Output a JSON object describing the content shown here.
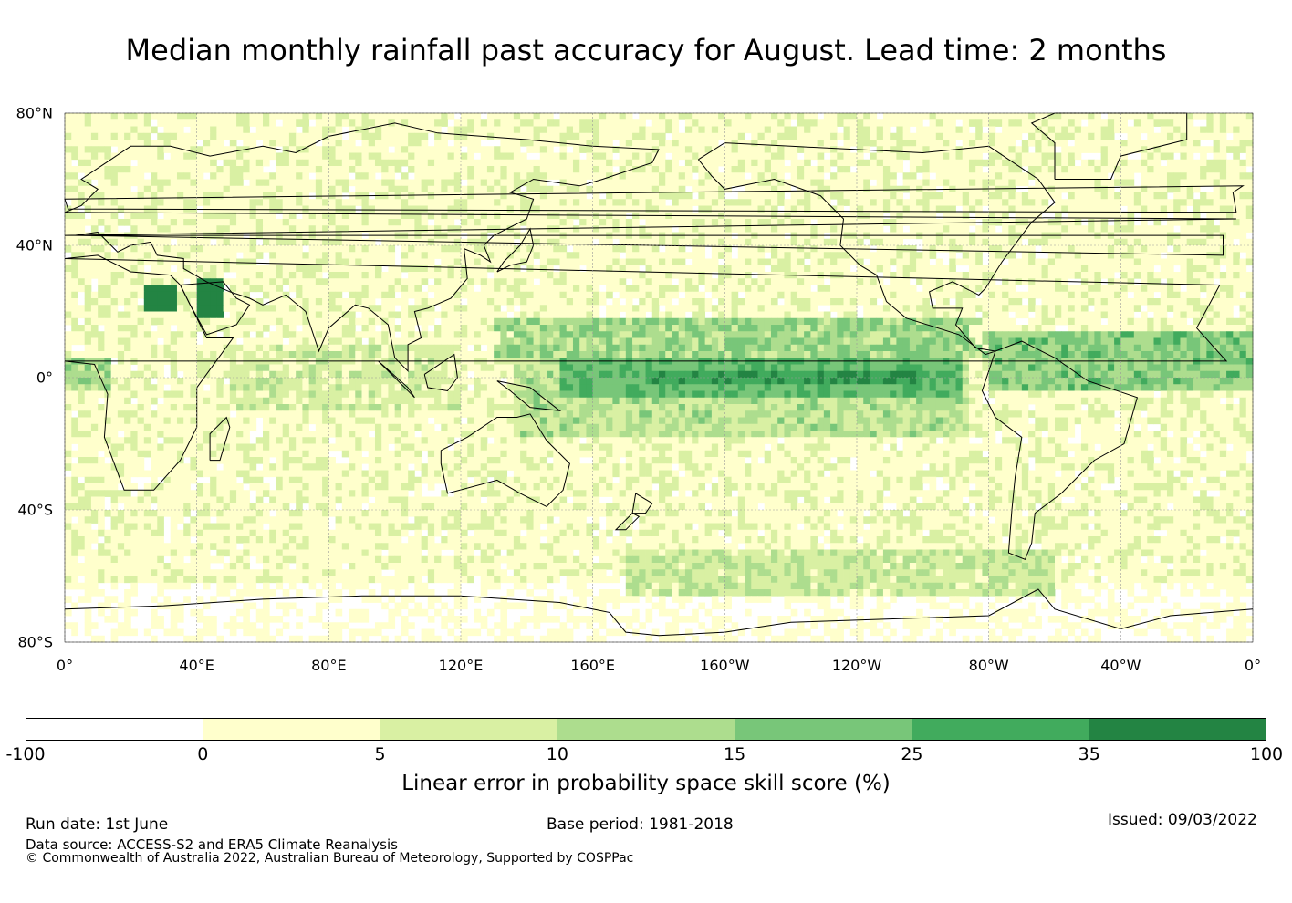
{
  "title": "Median monthly rainfall past accuracy for August. Lead time: 2 months",
  "map": {
    "lat_labels": [
      "80°N",
      "40°N",
      "0°",
      "40°S",
      "80°S"
    ],
    "lon_labels": [
      "0°",
      "40°E",
      "80°E",
      "120°E",
      "160°E",
      "160°W",
      "120°W",
      "80°W",
      "40°W",
      "0°"
    ],
    "grid": true,
    "projection": "plate carrée, centred on 180°",
    "field_description_regions": [
      {
        "region": "equatorial central-east Pacific",
        "skill_class": "35 to 100"
      },
      {
        "region": "Arabian Peninsula / NE Africa",
        "skill_class": "35 to 100"
      },
      {
        "region": "equatorial Atlantic / north Brazil",
        "skill_class": "25 to 35"
      },
      {
        "region": "tropical western Pacific",
        "skill_class": "15 to 25"
      },
      {
        "region": "Southern Ocean near 60°S",
        "skill_class": "10 to 15"
      }
    ]
  },
  "colorbar": {
    "ticks": [
      "-100",
      "0",
      "5",
      "10",
      "15",
      "25",
      "35",
      "100"
    ],
    "colors": [
      "#ffffff",
      "#ffffcc",
      "#d9f0a3",
      "#addd8e",
      "#78c679",
      "#41ab5d",
      "#238443"
    ],
    "label": "Linear error in probability space skill score (%)"
  },
  "footer": {
    "run_date": "Run date: 1st June",
    "base_period": "Base period: 1981-2018",
    "issued": "Issued: 09/03/2022",
    "data_source": "Data source: ACCESS-S2 and ERA5 Climate Reanalysis",
    "copyright": "© Commonwealth of Australia 2022, Australian Bureau of Meteorology, Supported by COSPPac"
  }
}
